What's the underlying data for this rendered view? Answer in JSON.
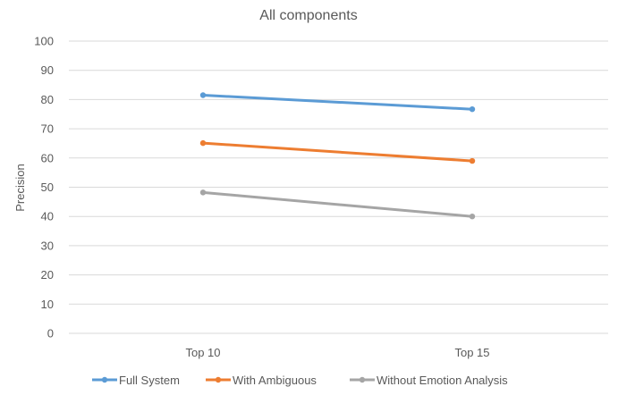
{
  "chart_data": {
    "type": "line",
    "title": "All components",
    "xlabel": "",
    "ylabel": "Precision",
    "categories": [
      "Top 10",
      "Top 15"
    ],
    "ylim": [
      0,
      100
    ],
    "yticks": [
      0,
      10,
      20,
      30,
      40,
      50,
      60,
      70,
      80,
      90,
      100
    ],
    "grid": true,
    "legend_position": "bottom",
    "series": [
      {
        "name": "Full System",
        "values": [
          81.5,
          76.7
        ],
        "color": "#5b9bd5"
      },
      {
        "name": "With Ambiguous",
        "values": [
          65.1,
          59.0
        ],
        "color": "#ed7d31"
      },
      {
        "name": "Without Emotion Analysis",
        "values": [
          48.2,
          40.0
        ],
        "color": "#a5a5a5"
      }
    ]
  }
}
